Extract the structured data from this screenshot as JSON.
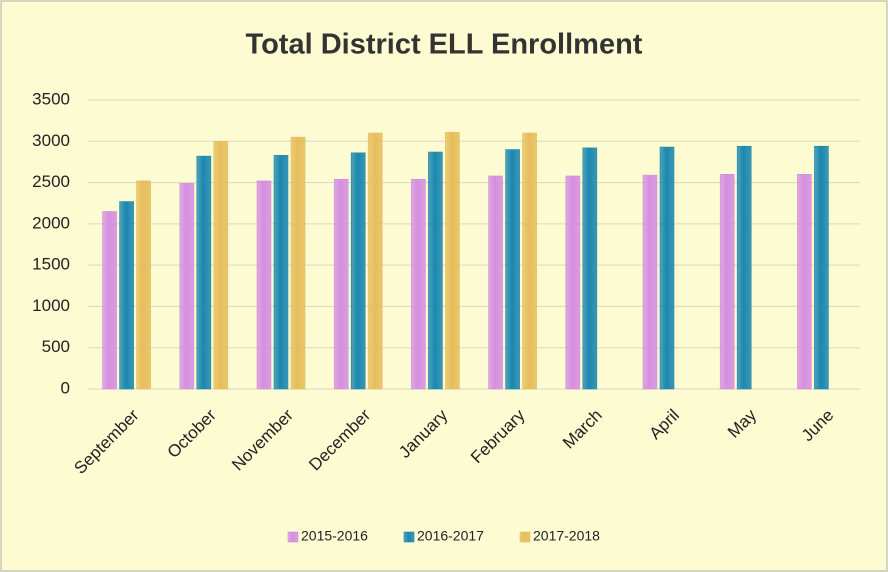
{
  "chart_data": {
    "type": "bar",
    "title": "Total District ELL Enrollment",
    "categories": [
      "September",
      "October",
      "November",
      "December",
      "January",
      "February",
      "March",
      "April",
      "May",
      "June"
    ],
    "series": [
      {
        "name": "2015-2016",
        "color": "#d58ee0",
        "values": [
          2150,
          2490,
          2520,
          2540,
          2540,
          2580,
          2580,
          2590,
          2600,
          2600
        ]
      },
      {
        "name": "2016-2017",
        "color": "#1b87b0",
        "values": [
          2270,
          2820,
          2830,
          2860,
          2870,
          2900,
          2920,
          2930,
          2940,
          2940
        ]
      },
      {
        "name": "2017-2018",
        "color": "#e6bd5c",
        "values": [
          2520,
          3000,
          3050,
          3100,
          3110,
          3100,
          null,
          null,
          null,
          null
        ]
      }
    ],
    "ylim": [
      0,
      3500
    ],
    "yticks": [
      0,
      500,
      1000,
      1500,
      2000,
      2500,
      3000,
      3500
    ],
    "grid": true,
    "legend": "bottom"
  }
}
